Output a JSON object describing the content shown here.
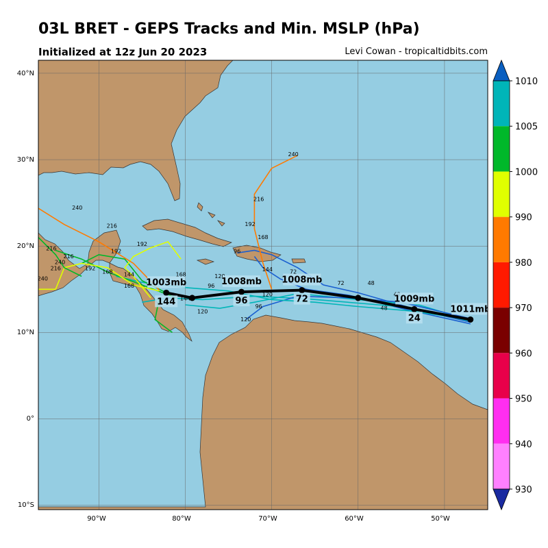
{
  "title": "03L BRET - GEPS Tracks and Min. MSLP (hPa)",
  "subtitle": "Initialized at 12z Jun 20 2023",
  "credit": "Levi Cowan - tropicaltidbits.com",
  "map": {
    "lon_range": [
      -97,
      -45
    ],
    "lat_range": [
      -10.5,
      41.5
    ],
    "lat_ticks": [
      "40°N",
      "30°N",
      "20°N",
      "10°N",
      "0°",
      "10°S"
    ],
    "lon_ticks": [
      "90°W",
      "80°W",
      "70°W",
      "60°W",
      "50°W"
    ],
    "colors": {
      "ocean": "#95cde2",
      "land": "#c0966a",
      "border": "#333333",
      "grid": "#666666"
    }
  },
  "mean_track": {
    "points": [
      {
        "lon": -47.0,
        "lat": 11.5
      },
      {
        "lon": -53.5,
        "lat": 12.7
      },
      {
        "lon": -60.0,
        "lat": 14.0
      },
      {
        "lon": -66.5,
        "lat": 14.9
      },
      {
        "lon": -73.5,
        "lat": 14.7
      },
      {
        "lon": -79.2,
        "lat": 14.0
      },
      {
        "lon": -82.2,
        "lat": 14.6
      }
    ],
    "labels": [
      {
        "mslp": "1011mb",
        "hour": "",
        "lon": -47.0,
        "lat": 11.5
      },
      {
        "mslp": "1009mb",
        "hour": "24",
        "lon": -53.5,
        "lat": 12.7
      },
      {
        "mslp": "1008mb",
        "hour": "72",
        "lon": -66.5,
        "lat": 14.9
      },
      {
        "mslp": "1008mb",
        "hour": "96",
        "lon": -73.5,
        "lat": 14.7
      },
      {
        "mslp": "1003mb",
        "hour": "144",
        "lon": -82.2,
        "lat": 14.6
      }
    ]
  },
  "colorbar": {
    "levels": [
      "1010",
      "1005",
      "1000",
      "990",
      "980",
      "970",
      "960",
      "950",
      "940",
      "930"
    ],
    "colors": [
      "#0a5fc0",
      "#00b5b8",
      "#00b82a",
      "#e0ff00",
      "#ff7a00",
      "#ff1a00",
      "#7a0000",
      "#e8004a",
      "#ff2ef0",
      "#ff80ff",
      "#6a3cff",
      "#1a2aa0"
    ]
  },
  "member_tracks": [
    {
      "color": "#1a5fd0",
      "points": [
        [
          -47,
          11.2
        ],
        [
          -53,
          12.6
        ],
        [
          -60,
          14.6
        ],
        [
          -64,
          15.5
        ],
        [
          -67,
          17.5
        ],
        [
          -70,
          19.0
        ],
        [
          -72,
          19.5
        ],
        [
          -74,
          19.2
        ]
      ]
    },
    {
      "color": "#1a5fd0",
      "points": [
        [
          -47,
          11.0
        ],
        [
          -55,
          12.8
        ],
        [
          -61,
          14.3
        ],
        [
          -66,
          15.0
        ],
        [
          -69,
          16.2
        ],
        [
          -71,
          17.5
        ],
        [
          -72,
          18.8
        ]
      ]
    },
    {
      "color": "#00b5b8",
      "points": [
        [
          -47,
          11.3
        ],
        [
          -54,
          12.9
        ],
        [
          -60,
          13.4
        ],
        [
          -66,
          13.9
        ],
        [
          -72,
          14.2
        ],
        [
          -78,
          13.8
        ],
        [
          -82,
          14.0
        ],
        [
          -85,
          13.5
        ]
      ]
    },
    {
      "color": "#00b5b8",
      "points": [
        [
          -47,
          11.4
        ],
        [
          -53,
          13.2
        ],
        [
          -60,
          13.8
        ],
        [
          -67,
          14.5
        ],
        [
          -72,
          13.5
        ],
        [
          -76,
          12.8
        ],
        [
          -80,
          13.2
        ]
      ]
    },
    {
      "color": "#1a5fd0",
      "points": [
        [
          -47,
          11.6
        ],
        [
          -55,
          13.5
        ],
        [
          -61,
          14.0
        ],
        [
          -67,
          14.2
        ],
        [
          -71,
          13.0
        ],
        [
          -73,
          11.5
        ]
      ]
    },
    {
      "color": "#00b5b8",
      "points": [
        [
          -47,
          11.5
        ],
        [
          -54,
          12.5
        ],
        [
          -60,
          13.0
        ],
        [
          -65,
          13.5
        ],
        [
          -70,
          13.8
        ],
        [
          -75,
          14.8
        ],
        [
          -80,
          15.2
        ],
        [
          -85,
          15.8
        ],
        [
          -88,
          16.5
        ]
      ]
    },
    {
      "color": "#00b82a",
      "points": [
        [
          -81,
          14.0
        ],
        [
          -85,
          15.5
        ],
        [
          -89,
          17.0
        ],
        [
          -92,
          18.5
        ],
        [
          -95,
          19.5
        ]
      ]
    },
    {
      "color": "#00b82a",
      "points": [
        [
          -82,
          14.5
        ],
        [
          -85,
          16.0
        ],
        [
          -87,
          18.5
        ],
        [
          -90,
          19.0
        ],
        [
          -92,
          18.0
        ]
      ]
    },
    {
      "color": "#e0ff00",
      "points": [
        [
          -83,
          14.8
        ],
        [
          -86,
          15.5
        ],
        [
          -89,
          17.5
        ],
        [
          -92,
          18.0
        ],
        [
          -94,
          17.5
        ],
        [
          -95,
          15.0
        ],
        [
          -97,
          15.0
        ]
      ]
    },
    {
      "color": "#e0ff00",
      "points": [
        [
          -84,
          14.0
        ],
        [
          -86,
          16.5
        ],
        [
          -87,
          17.5
        ],
        [
          -86,
          18.8
        ],
        [
          -84,
          19.8
        ],
        [
          -82,
          20.5
        ],
        [
          -80.5,
          18.5
        ]
      ]
    },
    {
      "color": "#00b82a",
      "points": [
        [
          -83,
          14.0
        ],
        [
          -83.5,
          11.5
        ],
        [
          -81.5,
          10.0
        ]
      ]
    },
    {
      "color": "#ff7a00",
      "points": [
        [
          -83,
          14.9
        ],
        [
          -86,
          18.0
        ],
        [
          -90,
          20.5
        ],
        [
          -94,
          22.5
        ],
        [
          -98,
          25.0
        ]
      ]
    },
    {
      "color": "#ff7a00",
      "points": [
        [
          -70,
          15.0
        ],
        [
          -71,
          18.0
        ],
        [
          -72,
          22.0
        ],
        [
          -72,
          26.0
        ],
        [
          -70,
          29.0
        ],
        [
          -67,
          30.5
        ]
      ]
    },
    {
      "color": "#00b82a",
      "points": [
        [
          -97,
          21.0
        ],
        [
          -95,
          19.0
        ],
        [
          -94,
          17.5
        ],
        [
          -92,
          16.5
        ]
      ]
    }
  ],
  "track_labels": [
    {
      "text": "240",
      "lon": -67.5,
      "lat": 30.4
    },
    {
      "text": "216",
      "lon": -71.5,
      "lat": 25.2
    },
    {
      "text": "192",
      "lon": -72.5,
      "lat": 22.3
    },
    {
      "text": "168",
      "lon": -71.0,
      "lat": 20.8
    },
    {
      "text": "240",
      "lon": -92.5,
      "lat": 24.2
    },
    {
      "text": "216",
      "lon": -88.5,
      "lat": 22.1
    },
    {
      "text": "192",
      "lon": -85.0,
      "lat": 20.0
    },
    {
      "text": "192",
      "lon": -88.0,
      "lat": 19.2
    },
    {
      "text": "216",
      "lon": -95.5,
      "lat": 19.5
    },
    {
      "text": "216",
      "lon": -93.5,
      "lat": 18.6
    },
    {
      "text": "240",
      "lon": -94.5,
      "lat": 17.9
    },
    {
      "text": "216",
      "lon": -95.0,
      "lat": 17.2
    },
    {
      "text": "192",
      "lon": -91.0,
      "lat": 17.2
    },
    {
      "text": "168",
      "lon": -89.0,
      "lat": 16.8
    },
    {
      "text": "144",
      "lon": -86.5,
      "lat": 16.5
    },
    {
      "text": "168",
      "lon": -86.5,
      "lat": 15.2
    },
    {
      "text": "168",
      "lon": -80.5,
      "lat": 16.5
    },
    {
      "text": "144",
      "lon": -80.0,
      "lat": 13.7
    },
    {
      "text": "120",
      "lon": -78.0,
      "lat": 12.2
    },
    {
      "text": "120",
      "lon": -76.0,
      "lat": 16.3
    },
    {
      "text": "96",
      "lon": -77.0,
      "lat": 15.2
    },
    {
      "text": "144",
      "lon": -70.5,
      "lat": 17.1
    },
    {
      "text": "120",
      "lon": -70.5,
      "lat": 14.2
    },
    {
      "text": "96",
      "lon": -71.5,
      "lat": 12.8
    },
    {
      "text": "72",
      "lon": -67.5,
      "lat": 16.8
    },
    {
      "text": "72",
      "lon": -62.0,
      "lat": 15.5
    },
    {
      "text": "48",
      "lon": -58.5,
      "lat": 15.5
    },
    {
      "text": "48",
      "lon": -55.5,
      "lat": 14.2
    },
    {
      "text": "48",
      "lon": -57.0,
      "lat": 12.6
    },
    {
      "text": "96",
      "lon": -74.0,
      "lat": 19.2
    },
    {
      "text": "240",
      "lon": -96.5,
      "lat": 16.0
    },
    {
      "text": "120",
      "lon": -73.0,
      "lat": 11.3
    }
  ]
}
